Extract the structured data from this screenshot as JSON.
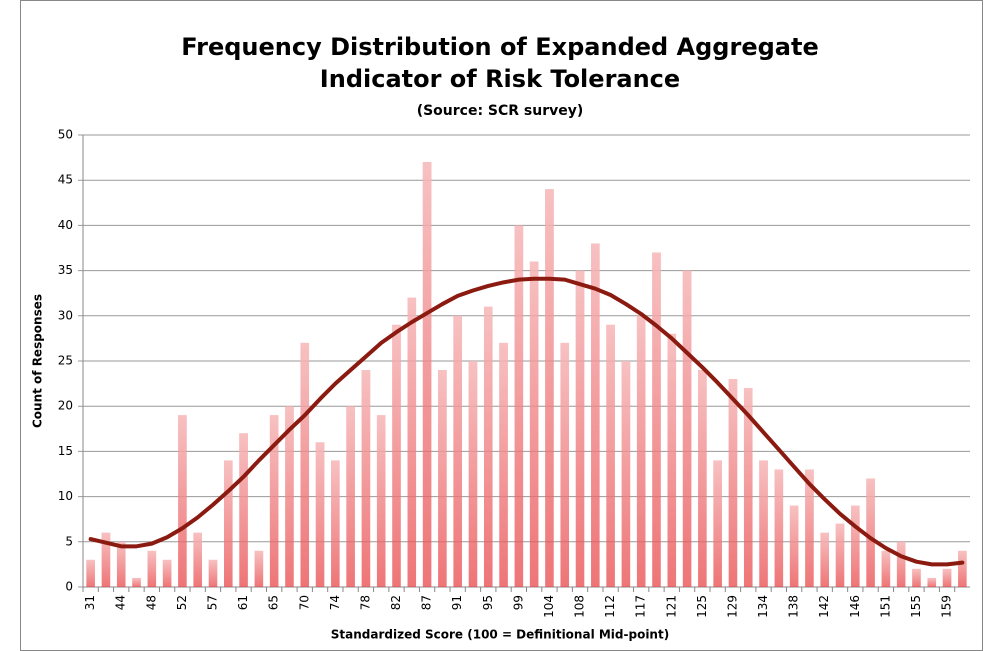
{
  "chart_data": {
    "type": "bar",
    "title": [
      "Frequency Distribution of Expanded Aggregate",
      "Indicator of Risk Tolerance"
    ],
    "subtitle": "(Source: SCR survey)",
    "x_label": "Standardized Score (100 = Definitional Mid-point)",
    "y_label": "Count of Responses",
    "categories": [
      "31",
      null,
      "44",
      null,
      "48",
      null,
      "52",
      null,
      "57",
      null,
      "61",
      null,
      "65",
      null,
      "70",
      null,
      "74",
      null,
      "78",
      null,
      "82",
      null,
      "87",
      null,
      "91",
      null,
      "95",
      null,
      "99",
      null,
      "104",
      null,
      "108",
      null,
      "112",
      null,
      "117",
      null,
      "121",
      null,
      "125",
      null,
      "129",
      null,
      "134",
      null,
      "138",
      null,
      "142",
      null,
      "146",
      null,
      "151",
      null,
      "155",
      null,
      "159",
      null
    ],
    "series": [
      {
        "type": "bar",
        "color": "#e8474a",
        "values": [
          3,
          6,
          5,
          1,
          4,
          3,
          19,
          6,
          3,
          14,
          17,
          4,
          19,
          20,
          27,
          16,
          14,
          20,
          24,
          19,
          29,
          32,
          47,
          24,
          30,
          25,
          31,
          27,
          40,
          36,
          44,
          27,
          35,
          38,
          29,
          25,
          30,
          37,
          28,
          35,
          24,
          14,
          23,
          22,
          14,
          13,
          9,
          13,
          6,
          7,
          9,
          12,
          4,
          5,
          2,
          1,
          2,
          4
        ]
      },
      {
        "type": "line",
        "color": "#8b1a10",
        "values": [
          5.3,
          4.9,
          4.5,
          4.5,
          4.8,
          5.5,
          6.5,
          7.7,
          9.1,
          10.6,
          12.2,
          14,
          15.7,
          17.4,
          19,
          20.8,
          22.5,
          24,
          25.5,
          27,
          28.2,
          29.3,
          30.3,
          31.3,
          32.2,
          32.8,
          33.3,
          33.7,
          34,
          34.1,
          34.1,
          34,
          33.5,
          33,
          32.3,
          31.3,
          30.2,
          28.9,
          27.5,
          25.9,
          24.3,
          22.6,
          20.8,
          19,
          17.1,
          15.2,
          13.3,
          11.4,
          9.7,
          8.1,
          6.7,
          5.4,
          4.3,
          3.4,
          2.8,
          2.5,
          2.5,
          2.7
        ]
      }
    ],
    "ylim": [
      0,
      50
    ],
    "yticks": [
      0,
      5,
      10,
      15,
      20,
      25,
      30,
      35,
      40,
      45,
      50
    ],
    "grid": true
  }
}
